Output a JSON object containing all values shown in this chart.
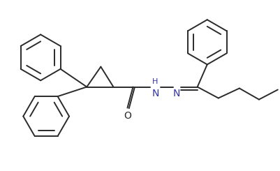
{
  "bg_color": "#ffffff",
  "line_color": "#2a2a2a",
  "atom_color": "#3333aa",
  "figsize": [
    4.01,
    2.45
  ],
  "dpi": 100,
  "lw": 1.4,
  "xlim": [
    0,
    10
  ],
  "ylim": [
    0,
    6.1
  ]
}
